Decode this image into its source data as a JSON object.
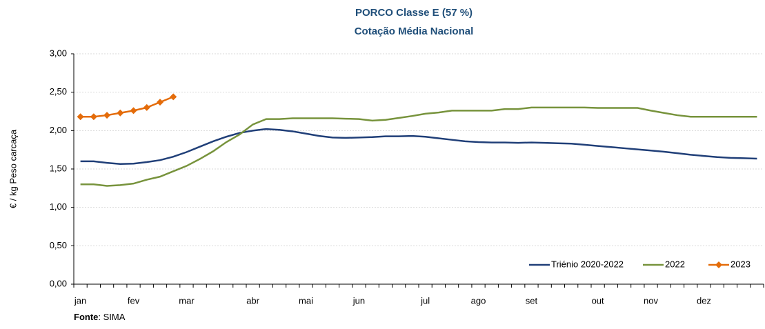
{
  "chart_data": {
    "type": "line",
    "title": [
      "PORCO Classe E (57 %)",
      "Cotação Média Nacional"
    ],
    "y_label": "€ / kg Peso carcaça",
    "source_label": "Fonte",
    "source_text": ": SIMA",
    "categories": [
      "jan",
      null,
      null,
      null,
      "fev",
      null,
      null,
      null,
      "mar",
      null,
      null,
      null,
      null,
      "abr",
      null,
      null,
      null,
      "mai",
      null,
      null,
      null,
      "jun",
      null,
      null,
      null,
      null,
      "jul",
      null,
      null,
      null,
      "ago",
      null,
      null,
      null,
      "set",
      null,
      null,
      null,
      null,
      "out",
      null,
      null,
      null,
      "nov",
      null,
      null,
      null,
      "dez",
      null,
      null,
      null,
      null
    ],
    "series": [
      {
        "name": "Triénio 2020-2022",
        "color": "#203f78",
        "marker": "none",
        "values": [
          1.6,
          1.6,
          1.58,
          1.565,
          1.57,
          1.59,
          1.615,
          1.66,
          1.72,
          1.79,
          1.86,
          1.92,
          1.97,
          2.0,
          2.02,
          2.01,
          1.99,
          1.96,
          1.93,
          1.91,
          1.905,
          1.91,
          1.915,
          1.925,
          1.925,
          1.93,
          1.92,
          1.9,
          1.88,
          1.86,
          1.85,
          1.845,
          1.845,
          1.84,
          1.845,
          1.84,
          1.835,
          1.83,
          1.815,
          1.8,
          1.785,
          1.77,
          1.755,
          1.74,
          1.725,
          1.705,
          1.685,
          1.67,
          1.655,
          1.645,
          1.64,
          1.635
        ]
      },
      {
        "name": "2022",
        "color": "#77933c",
        "marker": "none",
        "values": [
          1.3,
          1.3,
          1.28,
          1.29,
          1.31,
          1.36,
          1.4,
          1.47,
          1.54,
          1.63,
          1.73,
          1.85,
          1.95,
          2.08,
          2.15,
          2.15,
          2.16,
          2.16,
          2.16,
          2.16,
          2.155,
          2.15,
          2.13,
          2.14,
          2.165,
          2.19,
          2.22,
          2.235,
          2.26,
          2.26,
          2.26,
          2.26,
          2.28,
          2.28,
          2.3,
          2.3,
          2.3,
          2.3,
          2.3,
          2.295,
          2.295,
          2.295,
          2.295,
          2.26,
          2.23,
          2.2,
          2.18,
          2.18,
          2.18,
          2.18,
          2.18,
          2.18
        ]
      },
      {
        "name": "2023",
        "color": "#e46c0a",
        "marker": "diamond",
        "values": [
          2.18,
          2.18,
          2.2,
          2.23,
          2.26,
          2.3,
          2.37,
          2.44,
          null,
          null,
          null,
          null,
          null,
          null,
          null,
          null,
          null,
          null,
          null,
          null,
          null,
          null,
          null,
          null,
          null,
          null,
          null,
          null,
          null,
          null,
          null,
          null,
          null,
          null,
          null,
          null,
          null,
          null,
          null,
          null,
          null,
          null,
          null,
          null,
          null,
          null,
          null,
          null,
          null,
          null,
          null,
          null
        ]
      }
    ],
    "ylim": [
      0,
      3
    ],
    "yticks": [
      {
        "value": 0,
        "label": "0,00"
      },
      {
        "value": 0.5,
        "label": "0,50"
      },
      {
        "value": 1,
        "label": "1,00"
      },
      {
        "value": 1.5,
        "label": "1,50"
      },
      {
        "value": 2,
        "label": "2,00"
      },
      {
        "value": 2.5,
        "label": "2,50"
      },
      {
        "value": 3,
        "label": "3,00"
      }
    ],
    "grid": true,
    "legend": "bottom-right"
  }
}
